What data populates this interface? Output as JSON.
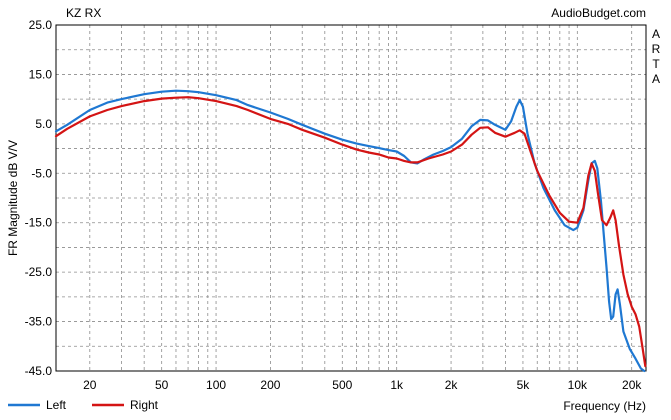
{
  "chart_data": {
    "type": "line",
    "title": "KZ RX",
    "source_label": "AudioBudget.com",
    "side_label": "ARTA",
    "xlabel": "Frequency (Hz)",
    "ylabel": "FR Magnitude dB V/V",
    "x_scale": "log",
    "xlim": [
      13,
      24000
    ],
    "ylim": [
      -45,
      25
    ],
    "y_ticks": [
      "25.0",
      "15.0",
      "5.0",
      "-5.0",
      "-15.0",
      "-25.0",
      "-35.0",
      "-45.0"
    ],
    "x_ticks": [
      {
        "value": 20,
        "label": "20"
      },
      {
        "value": 50,
        "label": "50"
      },
      {
        "value": 100,
        "label": "100"
      },
      {
        "value": 200,
        "label": "200"
      },
      {
        "value": 500,
        "label": "500"
      },
      {
        "value": 1000,
        "label": "1k"
      },
      {
        "value": 2000,
        "label": "2k"
      },
      {
        "value": 5000,
        "label": "5k"
      },
      {
        "value": 10000,
        "label": "10k"
      },
      {
        "value": 20000,
        "label": "20k"
      }
    ],
    "grid": true,
    "legend_position": "bottom-left",
    "series": [
      {
        "name": "Left",
        "color": "#1f78d2",
        "points": [
          [
            13,
            3.5
          ],
          [
            15,
            4.8
          ],
          [
            20,
            7.8
          ],
          [
            25,
            9.3
          ],
          [
            30,
            10.0
          ],
          [
            40,
            11.0
          ],
          [
            50,
            11.5
          ],
          [
            60,
            11.7
          ],
          [
            70,
            11.6
          ],
          [
            80,
            11.4
          ],
          [
            100,
            10.8
          ],
          [
            130,
            9.8
          ],
          [
            150,
            8.8
          ],
          [
            200,
            7.3
          ],
          [
            250,
            6.0
          ],
          [
            300,
            4.8
          ],
          [
            400,
            3.0
          ],
          [
            500,
            1.8
          ],
          [
            600,
            1.0
          ],
          [
            700,
            0.5
          ],
          [
            800,
            0.1
          ],
          [
            900,
            -0.3
          ],
          [
            1000,
            -0.6
          ],
          [
            1100,
            -1.5
          ],
          [
            1200,
            -2.8
          ],
          [
            1300,
            -3.0
          ],
          [
            1400,
            -2.3
          ],
          [
            1600,
            -1.2
          ],
          [
            1800,
            -0.5
          ],
          [
            2000,
            0.3
          ],
          [
            2300,
            2.0
          ],
          [
            2600,
            4.5
          ],
          [
            2900,
            5.8
          ],
          [
            3200,
            5.7
          ],
          [
            3500,
            4.8
          ],
          [
            4000,
            3.8
          ],
          [
            4300,
            5.5
          ],
          [
            4600,
            8.5
          ],
          [
            4800,
            9.8
          ],
          [
            5000,
            8.5
          ],
          [
            5300,
            3.0
          ],
          [
            5800,
            -3.0
          ],
          [
            6500,
            -8.0
          ],
          [
            7500,
            -12.5
          ],
          [
            8500,
            -15.5
          ],
          [
            9500,
            -16.5
          ],
          [
            10000,
            -16.0
          ],
          [
            10800,
            -12.5
          ],
          [
            11500,
            -6.5
          ],
          [
            12000,
            -3.0
          ],
          [
            12500,
            -2.5
          ],
          [
            12900,
            -4.0
          ],
          [
            13500,
            -10.5
          ],
          [
            14500,
            -24.0
          ],
          [
            15000,
            -31.0
          ],
          [
            15400,
            -34.5
          ],
          [
            15800,
            -34.0
          ],
          [
            16300,
            -29.5
          ],
          [
            16700,
            -28.5
          ],
          [
            17200,
            -31.5
          ],
          [
            18000,
            -37.0
          ],
          [
            19500,
            -40.5
          ],
          [
            21000,
            -42.5
          ],
          [
            22500,
            -44.5
          ],
          [
            23500,
            -45.0
          ]
        ]
      },
      {
        "name": "Right",
        "color": "#d41414",
        "points": [
          [
            13,
            2.5
          ],
          [
            15,
            4.0
          ],
          [
            20,
            6.5
          ],
          [
            25,
            7.8
          ],
          [
            30,
            8.6
          ],
          [
            40,
            9.6
          ],
          [
            50,
            10.1
          ],
          [
            60,
            10.3
          ],
          [
            70,
            10.4
          ],
          [
            80,
            10.2
          ],
          [
            100,
            9.6
          ],
          [
            130,
            8.6
          ],
          [
            150,
            7.8
          ],
          [
            200,
            6.0
          ],
          [
            250,
            5.0
          ],
          [
            300,
            3.8
          ],
          [
            400,
            2.2
          ],
          [
            500,
            0.8
          ],
          [
            600,
            -0.2
          ],
          [
            700,
            -0.8
          ],
          [
            800,
            -1.2
          ],
          [
            900,
            -1.8
          ],
          [
            1000,
            -2.0
          ],
          [
            1100,
            -2.5
          ],
          [
            1200,
            -2.8
          ],
          [
            1300,
            -2.8
          ],
          [
            1500,
            -2.0
          ],
          [
            1800,
            -1.2
          ],
          [
            2000,
            -0.6
          ],
          [
            2300,
            0.8
          ],
          [
            2600,
            2.8
          ],
          [
            2900,
            4.2
          ],
          [
            3200,
            4.3
          ],
          [
            3500,
            3.2
          ],
          [
            4000,
            2.4
          ],
          [
            4500,
            3.2
          ],
          [
            4800,
            3.7
          ],
          [
            5100,
            3.0
          ],
          [
            5500,
            -0.5
          ],
          [
            6000,
            -4.5
          ],
          [
            7000,
            -9.5
          ],
          [
            8000,
            -13.0
          ],
          [
            9000,
            -14.8
          ],
          [
            10000,
            -15.0
          ],
          [
            10800,
            -12.0
          ],
          [
            11500,
            -5.5
          ],
          [
            12000,
            -3.0
          ],
          [
            12500,
            -4.5
          ],
          [
            13000,
            -9.0
          ],
          [
            13700,
            -14.5
          ],
          [
            14500,
            -15.5
          ],
          [
            15200,
            -14.0
          ],
          [
            15800,
            -12.5
          ],
          [
            16300,
            -14.5
          ],
          [
            17000,
            -19.5
          ],
          [
            18000,
            -25.5
          ],
          [
            19000,
            -29.5
          ],
          [
            20000,
            -32.0
          ],
          [
            21000,
            -33.5
          ],
          [
            22000,
            -36.0
          ],
          [
            23000,
            -40.5
          ],
          [
            23800,
            -44.0
          ]
        ]
      }
    ]
  }
}
